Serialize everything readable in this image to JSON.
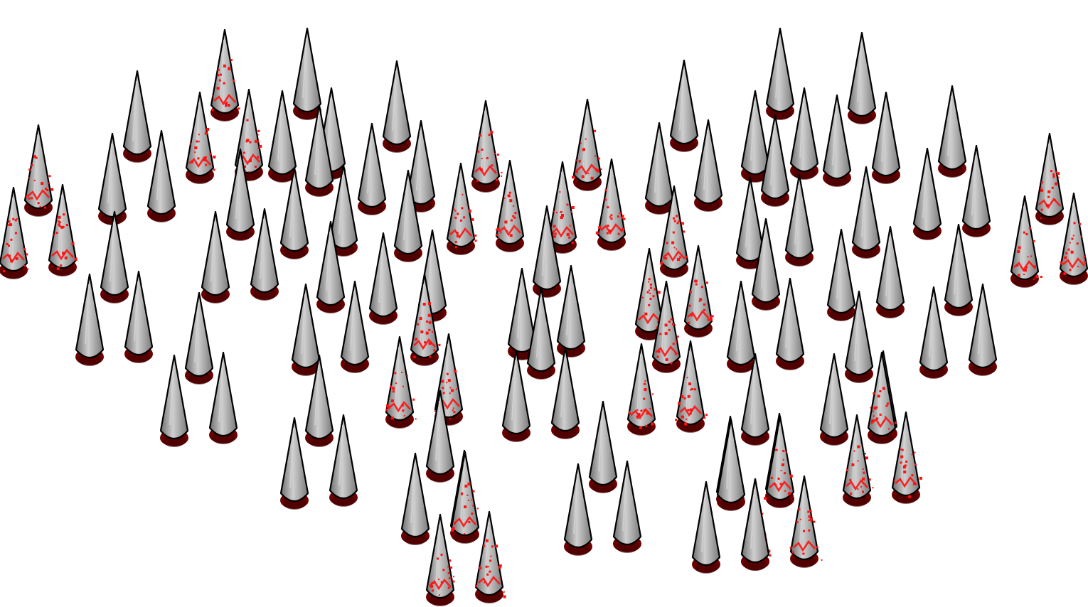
{
  "scene": {
    "background": "#ffffff",
    "sprite": {
      "name": "spike",
      "icon": "spike-icon",
      "colors": {
        "body_fill": "#8f8f8f",
        "body_highlight": "#d6d6d6",
        "outline": "#000000",
        "base_shadow": "#6b0000",
        "base_dark": "#3a0000",
        "blood": "#ff1010"
      }
    },
    "spike_groups": [
      {
        "count": 3,
        "bloody": true
      },
      {
        "count": 3,
        "bloody": false
      },
      {
        "count": 3,
        "bloody": true
      },
      {
        "count": 3,
        "bloody": false
      },
      {
        "count": 3,
        "bloody": false
      },
      {
        "count": 3,
        "bloody": true
      },
      {
        "count": 3,
        "bloody": true
      },
      {
        "count": 3,
        "bloody": false
      },
      {
        "count": 3,
        "bloody": false
      },
      {
        "count": 3,
        "bloody": false
      },
      {
        "count": 3,
        "bloody": false
      },
      {
        "count": 3,
        "bloody": true
      },
      {
        "count": 3,
        "bloody": false
      },
      {
        "count": 3,
        "bloody": false
      },
      {
        "count": 3,
        "bloody": false
      },
      {
        "count": 3,
        "bloody": false
      },
      {
        "count": 3,
        "bloody": false
      },
      {
        "count": 3,
        "bloody": true
      },
      {
        "count": 3,
        "bloody": false
      },
      {
        "count": 3,
        "bloody": false
      },
      {
        "count": 3,
        "bloody": false
      },
      {
        "count": 3,
        "bloody": false
      },
      {
        "count": 3,
        "bloody": false
      },
      {
        "count": 3,
        "bloody": true
      },
      {
        "count": 3,
        "bloody": false
      },
      {
        "count": 3,
        "bloody": true
      },
      {
        "count": 3,
        "bloody": false
      },
      {
        "count": 3,
        "bloody": false
      },
      {
        "count": 3,
        "bloody": false
      },
      {
        "count": 3,
        "bloody": false
      },
      {
        "count": 3,
        "bloody": false
      },
      {
        "count": 3,
        "bloody": false
      },
      {
        "count": 3,
        "bloody": true
      },
      {
        "count": 3,
        "bloody": true
      },
      {
        "count": 3,
        "bloody": false
      },
      {
        "count": 3,
        "bloody": true
      }
    ]
  }
}
